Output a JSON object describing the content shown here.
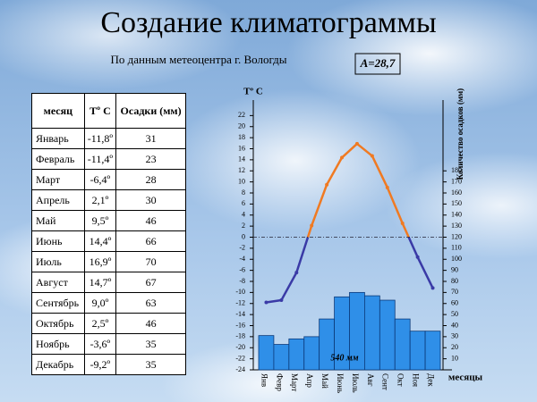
{
  "title": "Создание климатограммы",
  "subtitle": "По данным метеоцентра г. Вологды",
  "amplitude": "A=28,7",
  "table": {
    "header": [
      "месяц",
      "Tº C",
      "Осадки (мм)"
    ],
    "rows": [
      [
        "Январь",
        "-11,8º",
        "31"
      ],
      [
        "Февраль",
        "-11,4º",
        "23"
      ],
      [
        "Март",
        "-6,4º",
        "28"
      ],
      [
        "Апрель",
        "2,1º",
        "30"
      ],
      [
        "Май",
        "9,5º",
        "46"
      ],
      [
        "Июнь",
        "14,4º",
        "66"
      ],
      [
        "Июль",
        "16,9º",
        "70"
      ],
      [
        "Август",
        "14,7º",
        "67"
      ],
      [
        "Сентябрь",
        "9,0º",
        "63"
      ],
      [
        "Октябрь",
        "2,5º",
        "46"
      ],
      [
        "Ноябрь",
        "-3,6º",
        "35"
      ],
      [
        "Декабрь",
        "-9,2º",
        "35"
      ]
    ]
  },
  "chart_data": {
    "type": "climatogram",
    "categories": [
      "Янв",
      "Февр",
      "Март",
      "Апр",
      "Май",
      "Июнь",
      "Июль",
      "Авг",
      "Сент",
      "Окт",
      "Ноя",
      "Дек"
    ],
    "x_label": "месяцы",
    "y_label": "Tº C",
    "y2_label": "Количество осадков (мм)",
    "annotation": "540 мм",
    "ylim": [
      -24,
      24
    ],
    "yticks": [
      -24,
      -22,
      -20,
      -18,
      -16,
      -14,
      -12,
      -10,
      -8,
      -6,
      -4,
      -2,
      0,
      2,
      4,
      6,
      8,
      10,
      12,
      14,
      16,
      18,
      20,
      22
    ],
    "y2lim": [
      0,
      240
    ],
    "y2ticks": [
      10,
      20,
      30,
      40,
      50,
      60,
      70,
      80,
      90,
      100,
      110,
      120,
      130,
      140,
      150,
      160,
      170,
      180
    ],
    "zero_line": true,
    "series": [
      {
        "type": "bar",
        "axis": "y2",
        "color": "#2f8fe8",
        "values": [
          31,
          23,
          28,
          30,
          46,
          66,
          70,
          67,
          63,
          46,
          35,
          35
        ]
      },
      {
        "type": "line",
        "color_above": "#f07a22",
        "color_below": "#3a3aa6",
        "values": [
          -11.8,
          -11.4,
          -6.4,
          2.1,
          9.5,
          14.4,
          16.9,
          14.7,
          9.0,
          2.5,
          -3.6,
          -9.2
        ]
      }
    ]
  }
}
